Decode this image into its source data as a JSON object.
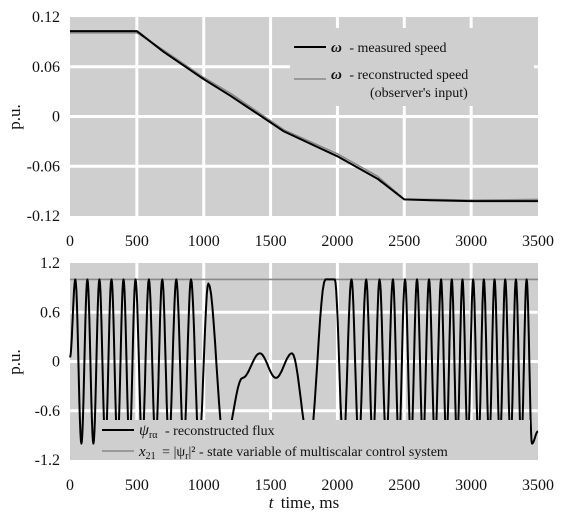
{
  "chart_data": [
    {
      "type": "line",
      "ylabel": "p.u.",
      "xlim": [
        0,
        3500
      ],
      "ylim": [
        -0.12,
        0.12
      ],
      "x_ticks": [
        0,
        500,
        1000,
        1500,
        2000,
        2500,
        3000,
        3500
      ],
      "y_ticks": [
        0.12,
        0.06,
        0,
        -0.06,
        -0.12
      ],
      "x_tick_labels": [
        "0",
        "500",
        "1000",
        "1500",
        "2000",
        "2500",
        "3000",
        "3500"
      ],
      "y_tick_labels": [
        "0.12",
        "0.06",
        "0",
        "-0.06",
        "-0.12"
      ],
      "grid": true,
      "background": "#cfcfcf",
      "legend_position": "top-right",
      "series": [
        {
          "name": "ω - measured speed",
          "legend_symbol": "ω",
          "legend_text": "- measured speed",
          "color": "#000000",
          "x": [
            0,
            500,
            700,
            1000,
            1200,
            1600,
            2000,
            2300,
            2500,
            2700,
            3000,
            3500
          ],
          "y": [
            0.103,
            0.103,
            0.078,
            0.045,
            0.025,
            -0.018,
            -0.048,
            -0.075,
            -0.1,
            -0.101,
            -0.102,
            -0.102
          ]
        },
        {
          "name": "ω - reconstructed speed (observer's input)",
          "legend_symbol": "ω",
          "legend_text": "- reconstructed speed",
          "legend_text2": "(observer's input)",
          "color": "#888888",
          "x": [
            0,
            500,
            700,
            1000,
            1200,
            1600,
            2000,
            2300,
            2500,
            2700,
            3000,
            3500
          ],
          "y": [
            0.101,
            0.101,
            0.08,
            0.047,
            0.028,
            -0.016,
            -0.045,
            -0.072,
            -0.1,
            -0.1,
            -0.101,
            -0.1
          ]
        }
      ]
    },
    {
      "type": "line",
      "xlabel_symbol": "t",
      "xlabel": "time, ms",
      "ylabel": "p.u.",
      "xlim": [
        0,
        3500
      ],
      "ylim": [
        -1.2,
        1.2
      ],
      "x_ticks": [
        0,
        500,
        1000,
        1500,
        2000,
        2500,
        3000,
        3500
      ],
      "y_ticks": [
        1.2,
        0.6,
        0,
        -0.6,
        -1.2
      ],
      "x_tick_labels": [
        "0",
        "500",
        "1000",
        "1500",
        "2000",
        "2500",
        "3000",
        "3500"
      ],
      "y_tick_labels": [
        "1.2",
        "0.6",
        "0",
        "-0.6",
        "-1.2"
      ],
      "grid": true,
      "background": "#cfcfcf",
      "legend_position": "bottom",
      "series": [
        {
          "name": "ψrα - reconstructed flux",
          "legend_symbol": "ψ",
          "legend_sub": "rα",
          "legend_text": "- reconstructed flux",
          "color": "#000000",
          "x": [
            0,
            40,
            85,
            130,
            175,
            220,
            265,
            310,
            355,
            400,
            445,
            490,
            540,
            590,
            640,
            690,
            740,
            795,
            850,
            905,
            965,
            1035,
            1155,
            1290,
            1420,
            1540,
            1660,
            1790,
            1910,
            1980,
            2045,
            2105,
            2160,
            2215,
            2265,
            2315,
            2365,
            2415,
            2460,
            2505,
            2550,
            2595,
            2640,
            2685,
            2730,
            2775,
            2815,
            2855,
            2895,
            2935,
            2975,
            3015,
            3055,
            3095,
            3135,
            3175,
            3215,
            3255,
            3295,
            3335,
            3375,
            3415,
            3455,
            3500
          ],
          "y": [
            0.05,
            1,
            -1,
            1,
            -1,
            1,
            -1,
            1,
            -1,
            1,
            -1,
            1,
            -1,
            1,
            -1,
            1,
            -1,
            1,
            -1,
            1,
            -1,
            0.95,
            -1,
            -0.2,
            0.1,
            -0.2,
            0.1,
            -1,
            1,
            1,
            -1,
            1,
            -1,
            1,
            -1,
            1,
            -1,
            1,
            -1,
            1,
            -1,
            1,
            -1,
            1,
            -1,
            1,
            -1,
            1,
            -1,
            1,
            -1,
            1,
            -1,
            1,
            -1,
            1,
            -1,
            1,
            -1,
            1,
            -1,
            1,
            -1,
            -0.85
          ]
        },
        {
          "name": "x21 = |ψr|² - state variable of multiscalar control system",
          "legend_symbol": "x",
          "legend_sub": "21",
          "legend_text": "= |ψ",
          "legend_sub2": "r",
          "legend_text2": "|² - state variable of multiscalar control system",
          "color": "#888888",
          "x": [
            0,
            500,
            1000,
            1500,
            2000,
            2500,
            3000,
            3500
          ],
          "y": [
            1.0,
            1.0,
            1.0,
            1.0,
            1.0,
            1.0,
            1.0,
            1.0
          ]
        }
      ]
    }
  ]
}
